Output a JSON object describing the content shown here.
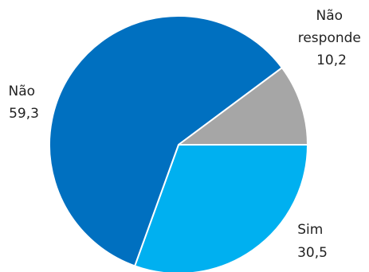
{
  "chart_data": {
    "type": "pie",
    "title": "",
    "slices": [
      {
        "name": "Sim",
        "value": 30.5,
        "value_label": "30,5",
        "color": "#00B0F0"
      },
      {
        "name": "Não",
        "value": 59.3,
        "value_label": "59,3",
        "color": "#0070C0"
      },
      {
        "name": "Não responde",
        "name_lines": [
          "Não",
          "responde"
        ],
        "value": 10.2,
        "value_label": "10,2",
        "color": "#A6A6A6"
      }
    ],
    "start": "right",
    "direction": "clockwise",
    "legend": "none",
    "separator_color": "#ffffff"
  }
}
